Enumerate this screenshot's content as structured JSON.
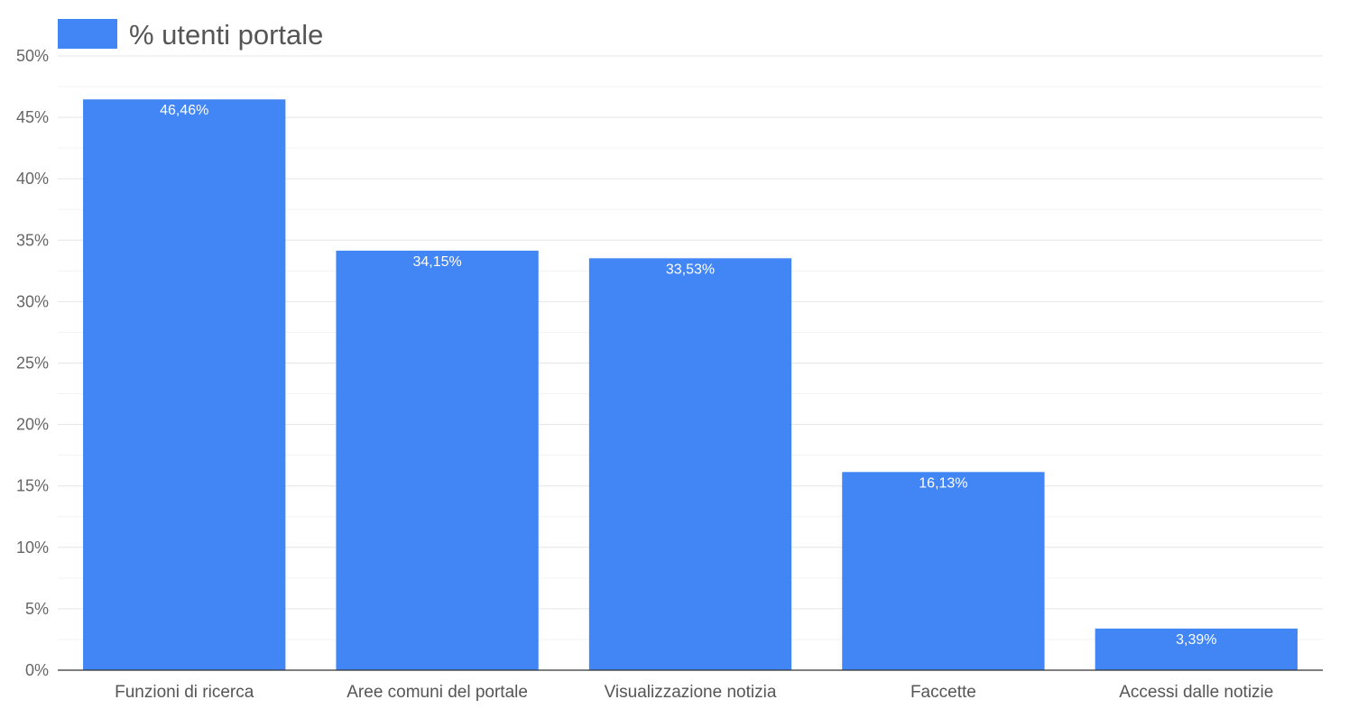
{
  "chart_data": {
    "type": "bar",
    "categories": [
      "Funzioni di ricerca",
      "Aree comuni del portale",
      "Visualizzazione notizia",
      "Faccette",
      "Accessi dalle notizie"
    ],
    "series": [
      {
        "name": "% utenti portale",
        "values": [
          46.46,
          34.15,
          33.53,
          16.13,
          3.39
        ],
        "data_labels": [
          "46,46%",
          "34,15%",
          "33,53%",
          "16,13%",
          "3,39%"
        ],
        "color": "#4285f4"
      }
    ],
    "title": "",
    "xlabel": "",
    "ylabel": "",
    "ylim": [
      0,
      50
    ],
    "y_ticks": [
      0,
      5,
      10,
      15,
      20,
      25,
      30,
      35,
      40,
      45,
      50
    ],
    "y_tick_labels": [
      "0%",
      "5%",
      "10%",
      "15%",
      "20%",
      "25%",
      "30%",
      "35%",
      "40%",
      "45%",
      "50%"
    ],
    "grid": true,
    "legend": "top-left"
  }
}
